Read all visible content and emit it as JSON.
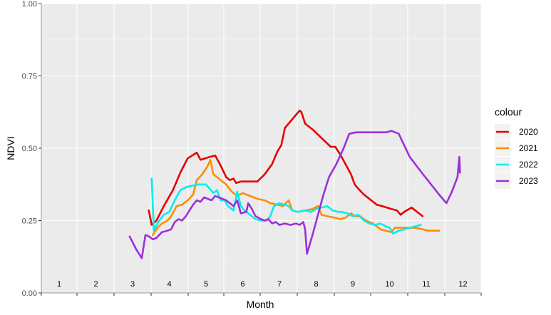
{
  "chart_data": {
    "type": "line",
    "xlabel": "Month",
    "ylabel": "NDVI",
    "ylim": [
      0,
      1
    ],
    "y_ticks": [
      "0.00",
      "0.25",
      "0.50",
      "0.75",
      "1.00"
    ],
    "y_tick_values": [
      0,
      0.25,
      0.5,
      0.75,
      1
    ],
    "x_month_labels": [
      "1",
      "2",
      "3",
      "4",
      "5",
      "6",
      "7",
      "8",
      "9",
      "10",
      "11",
      "12"
    ],
    "x_month_label_y": 0.02,
    "grid": true,
    "legend_title": "colour",
    "legend_position": "right",
    "colors": {
      "2020": "#e60000",
      "2021": "#ff8c00",
      "2022": "#00eeee",
      "2023": "#9b30d9"
    },
    "series": [
      {
        "name": "2020",
        "points": [
          [
            3.44,
            0.285
          ],
          [
            3.52,
            0.235
          ],
          [
            3.65,
            0.25
          ],
          [
            3.85,
            0.3
          ],
          [
            4.1,
            0.355
          ],
          [
            4.3,
            0.415
          ],
          [
            4.5,
            0.465
          ],
          [
            4.75,
            0.485
          ],
          [
            4.85,
            0.46
          ],
          [
            5.1,
            0.47
          ],
          [
            5.25,
            0.475
          ],
          [
            5.4,
            0.44
          ],
          [
            5.55,
            0.4
          ],
          [
            5.65,
            0.39
          ],
          [
            5.75,
            0.395
          ],
          [
            5.82,
            0.38
          ],
          [
            5.95,
            0.385
          ],
          [
            6.2,
            0.385
          ],
          [
            6.4,
            0.385
          ],
          [
            6.6,
            0.41
          ],
          [
            6.8,
            0.445
          ],
          [
            6.95,
            0.49
          ],
          [
            7.05,
            0.51
          ],
          [
            7.15,
            0.57
          ],
          [
            7.35,
            0.6
          ],
          [
            7.55,
            0.63
          ],
          [
            7.6,
            0.625
          ],
          [
            7.7,
            0.585
          ],
          [
            7.9,
            0.565
          ],
          [
            8.15,
            0.535
          ],
          [
            8.4,
            0.505
          ],
          [
            8.52,
            0.505
          ],
          [
            8.65,
            0.48
          ],
          [
            8.8,
            0.445
          ],
          [
            8.95,
            0.41
          ],
          [
            9.05,
            0.375
          ],
          [
            9.15,
            0.36
          ],
          [
            9.3,
            0.34
          ],
          [
            9.5,
            0.32
          ],
          [
            9.65,
            0.305
          ],
          [
            9.8,
            0.3
          ],
          [
            10.05,
            0.29
          ],
          [
            10.2,
            0.285
          ],
          [
            10.3,
            0.27
          ],
          [
            10.4,
            0.28
          ],
          [
            10.6,
            0.295
          ],
          [
            10.7,
            0.285
          ],
          [
            10.9,
            0.265
          ]
        ]
      },
      {
        "name": "2021",
        "points": [
          [
            3.55,
            0.2
          ],
          [
            3.68,
            0.225
          ],
          [
            3.8,
            0.24
          ],
          [
            3.95,
            0.25
          ],
          [
            4.05,
            0.265
          ],
          [
            4.2,
            0.3
          ],
          [
            4.35,
            0.305
          ],
          [
            4.5,
            0.32
          ],
          [
            4.65,
            0.34
          ],
          [
            4.75,
            0.39
          ],
          [
            4.9,
            0.41
          ],
          [
            5.05,
            0.44
          ],
          [
            5.12,
            0.46
          ],
          [
            5.2,
            0.41
          ],
          [
            5.35,
            0.395
          ],
          [
            5.55,
            0.375
          ],
          [
            5.7,
            0.35
          ],
          [
            5.85,
            0.335
          ],
          [
            6.0,
            0.345
          ],
          [
            6.2,
            0.335
          ],
          [
            6.4,
            0.325
          ],
          [
            6.6,
            0.32
          ],
          [
            6.75,
            0.31
          ],
          [
            6.95,
            0.305
          ],
          [
            7.1,
            0.3
          ],
          [
            7.25,
            0.32
          ],
          [
            7.35,
            0.285
          ],
          [
            7.5,
            0.28
          ],
          [
            7.7,
            0.285
          ],
          [
            7.9,
            0.29
          ],
          [
            8.05,
            0.3
          ],
          [
            8.15,
            0.27
          ],
          [
            8.3,
            0.265
          ],
          [
            8.5,
            0.26
          ],
          [
            8.65,
            0.255
          ],
          [
            8.8,
            0.26
          ],
          [
            8.95,
            0.275
          ],
          [
            9.05,
            0.265
          ],
          [
            9.2,
            0.265
          ],
          [
            9.35,
            0.25
          ],
          [
            9.55,
            0.24
          ],
          [
            9.75,
            0.22
          ],
          [
            9.9,
            0.215
          ],
          [
            10.05,
            0.21
          ],
          [
            10.15,
            0.225
          ],
          [
            10.3,
            0.225
          ],
          [
            10.5,
            0.225
          ],
          [
            10.7,
            0.225
          ],
          [
            10.9,
            0.22
          ],
          [
            11.05,
            0.215
          ],
          [
            11.2,
            0.215
          ],
          [
            11.35,
            0.215
          ]
        ]
      },
      {
        "name": "2022",
        "points": [
          [
            3.52,
            0.395
          ],
          [
            3.58,
            0.215
          ],
          [
            3.7,
            0.245
          ],
          [
            3.85,
            0.27
          ],
          [
            4.0,
            0.28
          ],
          [
            4.15,
            0.32
          ],
          [
            4.3,
            0.355
          ],
          [
            4.45,
            0.365
          ],
          [
            4.6,
            0.37
          ],
          [
            4.8,
            0.375
          ],
          [
            5.0,
            0.375
          ],
          [
            5.2,
            0.345
          ],
          [
            5.3,
            0.355
          ],
          [
            5.4,
            0.32
          ],
          [
            5.5,
            0.32
          ],
          [
            5.6,
            0.3
          ],
          [
            5.75,
            0.285
          ],
          [
            5.85,
            0.35
          ],
          [
            5.95,
            0.3
          ],
          [
            6.05,
            0.285
          ],
          [
            6.2,
            0.27
          ],
          [
            6.35,
            0.255
          ],
          [
            6.5,
            0.25
          ],
          [
            6.65,
            0.25
          ],
          [
            6.75,
            0.265
          ],
          [
            6.85,
            0.3
          ],
          [
            7.0,
            0.31
          ],
          [
            7.15,
            0.305
          ],
          [
            7.25,
            0.3
          ],
          [
            7.35,
            0.285
          ],
          [
            7.5,
            0.28
          ],
          [
            7.7,
            0.285
          ],
          [
            7.85,
            0.28
          ],
          [
            8.0,
            0.29
          ],
          [
            8.15,
            0.295
          ],
          [
            8.3,
            0.3
          ],
          [
            8.45,
            0.285
          ],
          [
            8.6,
            0.28
          ],
          [
            8.7,
            0.28
          ],
          [
            8.85,
            0.275
          ],
          [
            9.0,
            0.265
          ],
          [
            9.15,
            0.27
          ],
          [
            9.3,
            0.25
          ],
          [
            9.45,
            0.24
          ],
          [
            9.6,
            0.235
          ],
          [
            9.75,
            0.24
          ],
          [
            9.9,
            0.23
          ],
          [
            10.0,
            0.225
          ],
          [
            10.1,
            0.205
          ],
          [
            10.25,
            0.215
          ],
          [
            10.4,
            0.22
          ],
          [
            10.55,
            0.225
          ],
          [
            10.7,
            0.23
          ],
          [
            10.85,
            0.235
          ]
        ]
      },
      {
        "name": "2023",
        "points": [
          [
            2.92,
            0.195
          ],
          [
            3.1,
            0.15
          ],
          [
            3.25,
            0.12
          ],
          [
            3.35,
            0.2
          ],
          [
            3.45,
            0.195
          ],
          [
            3.55,
            0.185
          ],
          [
            3.65,
            0.19
          ],
          [
            3.8,
            0.21
          ],
          [
            3.95,
            0.215
          ],
          [
            4.05,
            0.22
          ],
          [
            4.15,
            0.245
          ],
          [
            4.25,
            0.255
          ],
          [
            4.35,
            0.25
          ],
          [
            4.45,
            0.265
          ],
          [
            4.55,
            0.285
          ],
          [
            4.65,
            0.305
          ],
          [
            4.75,
            0.32
          ],
          [
            4.85,
            0.315
          ],
          [
            4.95,
            0.33
          ],
          [
            5.05,
            0.325
          ],
          [
            5.15,
            0.32
          ],
          [
            5.25,
            0.335
          ],
          [
            5.35,
            0.33
          ],
          [
            5.45,
            0.325
          ],
          [
            5.55,
            0.32
          ],
          [
            5.65,
            0.31
          ],
          [
            5.75,
            0.3
          ],
          [
            5.85,
            0.32
          ],
          [
            5.95,
            0.275
          ],
          [
            6.1,
            0.28
          ],
          [
            6.15,
            0.31
          ],
          [
            6.25,
            0.29
          ],
          [
            6.35,
            0.265
          ],
          [
            6.5,
            0.255
          ],
          [
            6.6,
            0.25
          ],
          [
            6.7,
            0.255
          ],
          [
            6.8,
            0.24
          ],
          [
            6.9,
            0.245
          ],
          [
            7.0,
            0.235
          ],
          [
            7.15,
            0.24
          ],
          [
            7.3,
            0.235
          ],
          [
            7.45,
            0.24
          ],
          [
            7.55,
            0.235
          ],
          [
            7.65,
            0.245
          ],
          [
            7.7,
            0.22
          ],
          [
            7.75,
            0.135
          ],
          [
            7.9,
            0.2
          ],
          [
            8.05,
            0.27
          ],
          [
            8.2,
            0.34
          ],
          [
            8.35,
            0.4
          ],
          [
            8.55,
            0.445
          ],
          [
            8.75,
            0.5
          ],
          [
            8.9,
            0.55
          ],
          [
            9.1,
            0.555
          ],
          [
            9.5,
            0.555
          ],
          [
            9.9,
            0.555
          ],
          [
            10.05,
            0.56
          ],
          [
            10.25,
            0.55
          ],
          [
            10.4,
            0.51
          ],
          [
            10.55,
            0.47
          ],
          [
            10.85,
            0.42
          ],
          [
            11.1,
            0.38
          ],
          [
            11.35,
            0.34
          ],
          [
            11.55,
            0.31
          ],
          [
            11.7,
            0.35
          ],
          [
            11.85,
            0.4
          ],
          [
            11.9,
            0.47
          ],
          [
            11.92,
            0.415
          ]
        ]
      }
    ]
  }
}
